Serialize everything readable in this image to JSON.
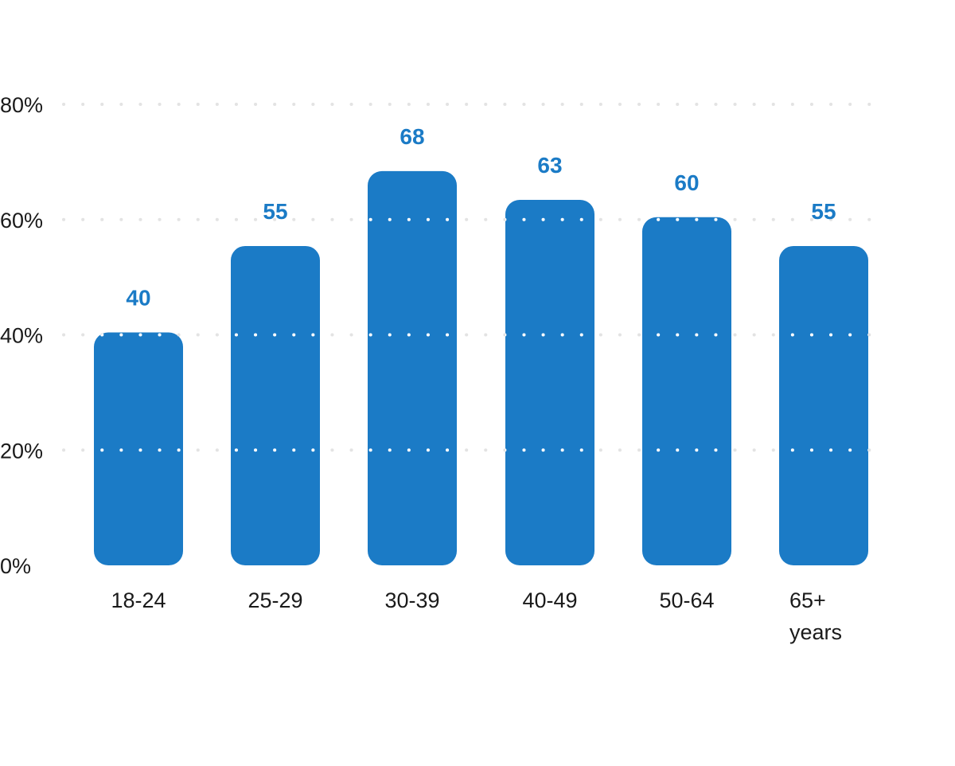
{
  "chart_data": {
    "type": "bar",
    "categories": [
      "18-24",
      "25-29",
      "30-39",
      "40-49",
      "50-64",
      "65+ years"
    ],
    "values": [
      40,
      55,
      68,
      63,
      60,
      55
    ],
    "value_labels": [
      "40",
      "55",
      "68",
      "63",
      "60",
      "55"
    ],
    "y_ticks": [
      0,
      20,
      40,
      60,
      80
    ],
    "y_tick_labels": [
      "0%",
      "20%",
      "40%",
      "60%",
      "80%"
    ],
    "ylim": [
      0,
      80
    ],
    "grid": true,
    "grid_style": "dotted",
    "title": "",
    "xlabel": "",
    "ylabel": ""
  },
  "colors": {
    "bar": "#1b7bc6",
    "value_label": "#1b7bc6",
    "grid": "#e3e3e3",
    "grid_on_bar": "#ffffff",
    "text": "#1a1a1a"
  }
}
